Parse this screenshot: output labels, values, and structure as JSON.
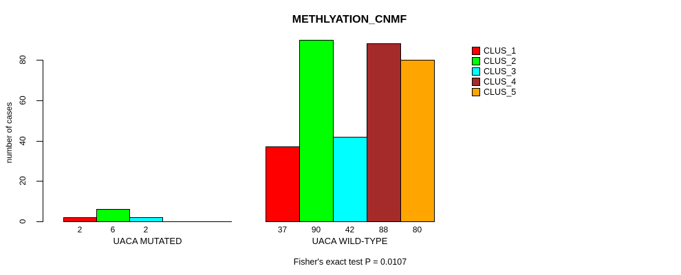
{
  "chart_data": {
    "type": "bar",
    "title": "METHLYATION_CNMF",
    "xlabel": "",
    "ylabel": "number of cases",
    "ylim": [
      0,
      90
    ],
    "yticks": [
      0,
      20,
      40,
      60,
      80
    ],
    "grid": false,
    "legend_position": "right",
    "annotation": "Fisher's exact test P = 0.0107",
    "series": [
      "CLUS_1",
      "CLUS_2",
      "CLUS_3",
      "CLUS_4",
      "CLUS_5"
    ],
    "colors": {
      "CLUS_1": "#FF0000",
      "CLUS_2": "#00FF00",
      "CLUS_3": "#00FFFF",
      "CLUS_4": "#A52A2A",
      "CLUS_5": "#FFA500"
    },
    "groups": [
      {
        "label": "UACA MUTATED",
        "bars": [
          {
            "series": "CLUS_1",
            "value": 2
          },
          {
            "series": "CLUS_2",
            "value": 6
          },
          {
            "series": "CLUS_3",
            "value": 2
          }
        ]
      },
      {
        "label": "UACA WILD-TYPE",
        "bars": [
          {
            "series": "CLUS_1",
            "value": 37
          },
          {
            "series": "CLUS_2",
            "value": 90
          },
          {
            "series": "CLUS_3",
            "value": 42
          },
          {
            "series": "CLUS_4",
            "value": 88
          },
          {
            "series": "CLUS_5",
            "value": 80
          }
        ]
      }
    ]
  },
  "legend": {
    "items": [
      {
        "label": "CLUS_1",
        "color": "#FF0000"
      },
      {
        "label": "CLUS_2",
        "color": "#00FF00"
      },
      {
        "label": "CLUS_3",
        "color": "#00FFFF"
      },
      {
        "label": "CLUS_4",
        "color": "#A52A2A"
      },
      {
        "label": "CLUS_5",
        "color": "#FFA500"
      }
    ]
  },
  "colors": {
    "background": "#FFFFFF",
    "axis": "#000000",
    "text": "#000000"
  }
}
